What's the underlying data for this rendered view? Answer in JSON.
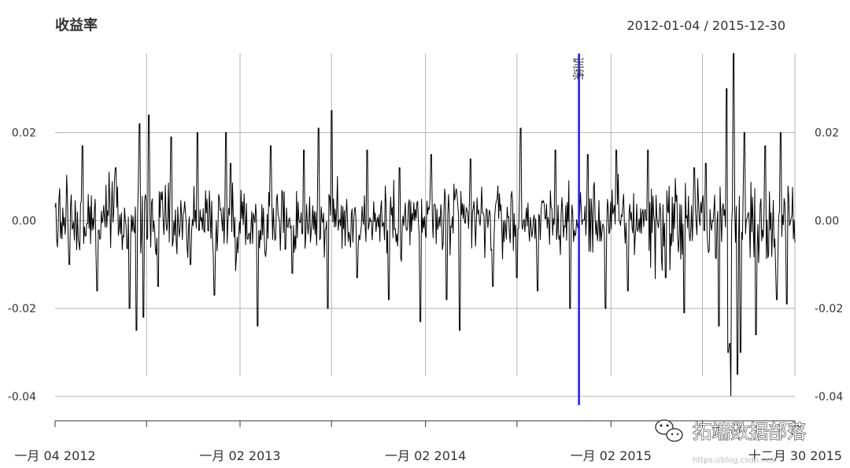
{
  "chart_data": {
    "type": "line",
    "title": "收益率",
    "date_range": "2012-01-04 / 2015-12-30",
    "x_start": "2012-01-04",
    "x_end": "2015-12-30",
    "ylim": [
      -0.042,
      0.038
    ],
    "y_ticks": [
      {
        "value": 0.02,
        "label": "0.02"
      },
      {
        "value": 0.0,
        "label": "0.00"
      },
      {
        "value": -0.02,
        "label": "-0.02"
      },
      {
        "value": -0.04,
        "label": "-0.04"
      }
    ],
    "x_tick_labels": [
      {
        "date": "2012-01-04",
        "label": "一月 04 2012"
      },
      {
        "date": "2013-01-02",
        "label": "一月 02 2013"
      },
      {
        "date": "2014-01-02",
        "label": "一月 02 2014"
      },
      {
        "date": "2015-01-02",
        "label": "一月 02 2015"
      },
      {
        "date": "2015-12-30",
        "label": "十二月 30 2015"
      }
    ],
    "x_grid_dates": [
      "2012-07-02",
      "2013-01-02",
      "2013-07-01",
      "2014-01-02",
      "2014-07-01",
      "2015-01-02",
      "2015-07-01",
      "2015-12-30"
    ],
    "x_minor_ticks": [
      "2012-01-04",
      "2012-07-02",
      "2013-01-02",
      "2013-07-01",
      "2014-01-02",
      "2014-07-01",
      "2015-01-02",
      "2015-07-01",
      "2015-12-30"
    ],
    "grid": true,
    "event_line": {
      "date": "2014-10-31",
      "label": "训练",
      "color": "#1a1aff"
    },
    "series": [
      {
        "color": "#000000",
        "points": [
          [
            "2012-01-04",
            0.003
          ],
          [
            "2012-02-01",
            -0.01
          ],
          [
            "2012-02-27",
            0.017
          ],
          [
            "2012-03-27",
            -0.016
          ],
          [
            "2012-05-02",
            0.012
          ],
          [
            "2012-05-29",
            -0.02
          ],
          [
            "2012-06-12",
            -0.025
          ],
          [
            "2012-06-18",
            0.022
          ],
          [
            "2012-06-26",
            -0.022
          ],
          [
            "2012-07-06",
            0.024
          ],
          [
            "2012-07-25",
            -0.015
          ],
          [
            "2012-08-20",
            0.019
          ],
          [
            "2012-09-26",
            -0.01
          ],
          [
            "2012-10-10",
            0.02
          ],
          [
            "2012-11-13",
            -0.017
          ],
          [
            "2012-12-05",
            0.02
          ],
          [
            "2012-12-14",
            0.013
          ],
          [
            "2013-02-06",
            -0.024
          ],
          [
            "2013-03-04",
            0.017
          ],
          [
            "2013-04-15",
            -0.012
          ],
          [
            "2013-05-08",
            0.016
          ],
          [
            "2013-06-05",
            0.021
          ],
          [
            "2013-06-24",
            -0.02
          ],
          [
            "2013-07-01",
            0.025
          ],
          [
            "2013-08-21",
            -0.013
          ],
          [
            "2013-09-09",
            0.016
          ],
          [
            "2013-10-22",
            -0.018
          ],
          [
            "2013-11-12",
            0.012
          ],
          [
            "2013-12-23",
            -0.023
          ],
          [
            "2014-01-13",
            0.015
          ],
          [
            "2014-02-12",
            -0.018
          ],
          [
            "2014-03-10",
            -0.025
          ],
          [
            "2014-04-01",
            0.014
          ],
          [
            "2014-05-15",
            -0.015
          ],
          [
            "2014-06-30",
            -0.013
          ],
          [
            "2014-07-09",
            0.021
          ],
          [
            "2014-08-11",
            -0.016
          ],
          [
            "2014-09-15",
            0.016
          ],
          [
            "2014-10-13",
            -0.02
          ],
          [
            "2014-11-18",
            0.015
          ],
          [
            "2014-12-22",
            -0.02
          ],
          [
            "2015-01-12",
            0.016
          ],
          [
            "2015-02-04",
            -0.016
          ],
          [
            "2015-03-16",
            0.016
          ],
          [
            "2015-04-20",
            -0.013
          ],
          [
            "2015-05-26",
            -0.021
          ],
          [
            "2015-06-15",
            0.012
          ],
          [
            "2015-07-07",
            0.013
          ],
          [
            "2015-08-03",
            -0.024
          ],
          [
            "2015-08-17",
            0.03
          ],
          [
            "2015-08-21",
            -0.03
          ],
          [
            "2015-08-24",
            -0.028
          ],
          [
            "2015-08-26",
            -0.04
          ],
          [
            "2015-08-31",
            0.038
          ],
          [
            "2015-09-08",
            -0.035
          ],
          [
            "2015-09-14",
            -0.03
          ],
          [
            "2015-09-22",
            0.02
          ],
          [
            "2015-10-14",
            -0.026
          ],
          [
            "2015-11-02",
            0.017
          ],
          [
            "2015-11-24",
            -0.018
          ],
          [
            "2015-12-02",
            0.02
          ],
          [
            "2015-12-14",
            -0.019
          ],
          [
            "2015-12-30",
            -0.005
          ]
        ]
      }
    ]
  },
  "watermark": {
    "text": "拓端数据部落",
    "url": "https://blog.csdn.net"
  }
}
